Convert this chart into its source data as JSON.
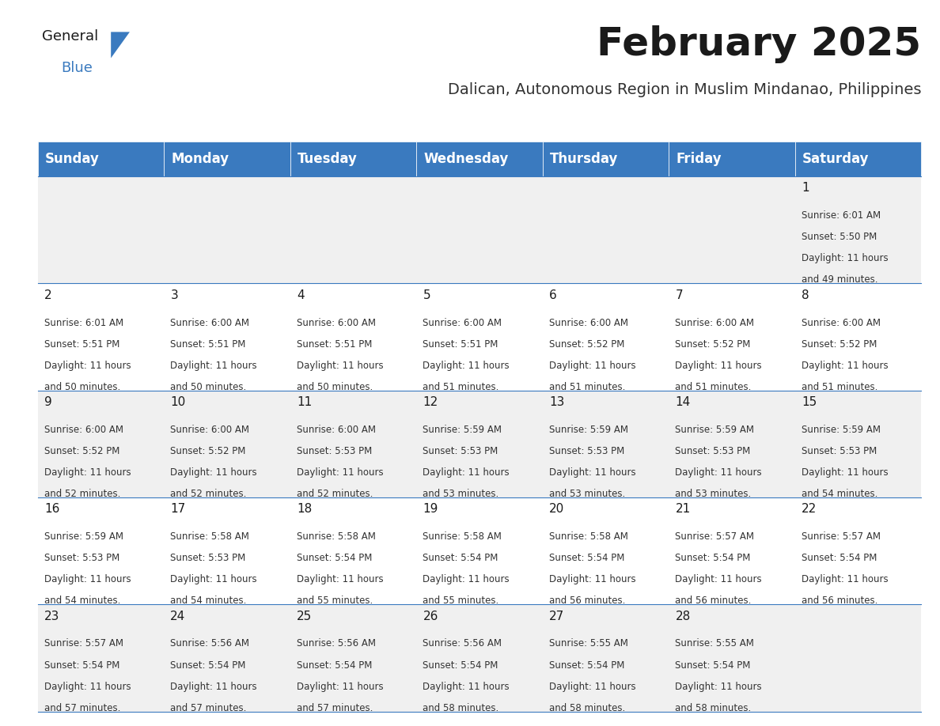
{
  "title": "February 2025",
  "subtitle": "Dalican, Autonomous Region in Muslim Mindanao, Philippines",
  "header_bg": "#3a7abf",
  "header_text_color": "#ffffff",
  "cell_bg_light": "#f0f0f0",
  "cell_bg_white": "#ffffff",
  "cell_text_color": "#333333",
  "day_number_color": "#1a1a1a",
  "border_color": "#3a7abf",
  "days_of_week": [
    "Sunday",
    "Monday",
    "Tuesday",
    "Wednesday",
    "Thursday",
    "Friday",
    "Saturday"
  ],
  "calendar": [
    [
      {
        "day": null,
        "sunrise": null,
        "sunset": null,
        "daylight_hours": null,
        "daylight_minutes": null
      },
      {
        "day": null,
        "sunrise": null,
        "sunset": null,
        "daylight_hours": null,
        "daylight_minutes": null
      },
      {
        "day": null,
        "sunrise": null,
        "sunset": null,
        "daylight_hours": null,
        "daylight_minutes": null
      },
      {
        "day": null,
        "sunrise": null,
        "sunset": null,
        "daylight_hours": null,
        "daylight_minutes": null
      },
      {
        "day": null,
        "sunrise": null,
        "sunset": null,
        "daylight_hours": null,
        "daylight_minutes": null
      },
      {
        "day": null,
        "sunrise": null,
        "sunset": null,
        "daylight_hours": null,
        "daylight_minutes": null
      },
      {
        "day": 1,
        "sunrise": "6:01 AM",
        "sunset": "5:50 PM",
        "daylight_hours": 11,
        "daylight_minutes": 49
      }
    ],
    [
      {
        "day": 2,
        "sunrise": "6:01 AM",
        "sunset": "5:51 PM",
        "daylight_hours": 11,
        "daylight_minutes": 50
      },
      {
        "day": 3,
        "sunrise": "6:00 AM",
        "sunset": "5:51 PM",
        "daylight_hours": 11,
        "daylight_minutes": 50
      },
      {
        "day": 4,
        "sunrise": "6:00 AM",
        "sunset": "5:51 PM",
        "daylight_hours": 11,
        "daylight_minutes": 50
      },
      {
        "day": 5,
        "sunrise": "6:00 AM",
        "sunset": "5:51 PM",
        "daylight_hours": 11,
        "daylight_minutes": 51
      },
      {
        "day": 6,
        "sunrise": "6:00 AM",
        "sunset": "5:52 PM",
        "daylight_hours": 11,
        "daylight_minutes": 51
      },
      {
        "day": 7,
        "sunrise": "6:00 AM",
        "sunset": "5:52 PM",
        "daylight_hours": 11,
        "daylight_minutes": 51
      },
      {
        "day": 8,
        "sunrise": "6:00 AM",
        "sunset": "5:52 PM",
        "daylight_hours": 11,
        "daylight_minutes": 51
      }
    ],
    [
      {
        "day": 9,
        "sunrise": "6:00 AM",
        "sunset": "5:52 PM",
        "daylight_hours": 11,
        "daylight_minutes": 52
      },
      {
        "day": 10,
        "sunrise": "6:00 AM",
        "sunset": "5:52 PM",
        "daylight_hours": 11,
        "daylight_minutes": 52
      },
      {
        "day": 11,
        "sunrise": "6:00 AM",
        "sunset": "5:53 PM",
        "daylight_hours": 11,
        "daylight_minutes": 52
      },
      {
        "day": 12,
        "sunrise": "5:59 AM",
        "sunset": "5:53 PM",
        "daylight_hours": 11,
        "daylight_minutes": 53
      },
      {
        "day": 13,
        "sunrise": "5:59 AM",
        "sunset": "5:53 PM",
        "daylight_hours": 11,
        "daylight_minutes": 53
      },
      {
        "day": 14,
        "sunrise": "5:59 AM",
        "sunset": "5:53 PM",
        "daylight_hours": 11,
        "daylight_minutes": 53
      },
      {
        "day": 15,
        "sunrise": "5:59 AM",
        "sunset": "5:53 PM",
        "daylight_hours": 11,
        "daylight_minutes": 54
      }
    ],
    [
      {
        "day": 16,
        "sunrise": "5:59 AM",
        "sunset": "5:53 PM",
        "daylight_hours": 11,
        "daylight_minutes": 54
      },
      {
        "day": 17,
        "sunrise": "5:58 AM",
        "sunset": "5:53 PM",
        "daylight_hours": 11,
        "daylight_minutes": 54
      },
      {
        "day": 18,
        "sunrise": "5:58 AM",
        "sunset": "5:54 PM",
        "daylight_hours": 11,
        "daylight_minutes": 55
      },
      {
        "day": 19,
        "sunrise": "5:58 AM",
        "sunset": "5:54 PM",
        "daylight_hours": 11,
        "daylight_minutes": 55
      },
      {
        "day": 20,
        "sunrise": "5:58 AM",
        "sunset": "5:54 PM",
        "daylight_hours": 11,
        "daylight_minutes": 56
      },
      {
        "day": 21,
        "sunrise": "5:57 AM",
        "sunset": "5:54 PM",
        "daylight_hours": 11,
        "daylight_minutes": 56
      },
      {
        "day": 22,
        "sunrise": "5:57 AM",
        "sunset": "5:54 PM",
        "daylight_hours": 11,
        "daylight_minutes": 56
      }
    ],
    [
      {
        "day": 23,
        "sunrise": "5:57 AM",
        "sunset": "5:54 PM",
        "daylight_hours": 11,
        "daylight_minutes": 57
      },
      {
        "day": 24,
        "sunrise": "5:56 AM",
        "sunset": "5:54 PM",
        "daylight_hours": 11,
        "daylight_minutes": 57
      },
      {
        "day": 25,
        "sunrise": "5:56 AM",
        "sunset": "5:54 PM",
        "daylight_hours": 11,
        "daylight_minutes": 57
      },
      {
        "day": 26,
        "sunrise": "5:56 AM",
        "sunset": "5:54 PM",
        "daylight_hours": 11,
        "daylight_minutes": 58
      },
      {
        "day": 27,
        "sunrise": "5:55 AM",
        "sunset": "5:54 PM",
        "daylight_hours": 11,
        "daylight_minutes": 58
      },
      {
        "day": 28,
        "sunrise": "5:55 AM",
        "sunset": "5:54 PM",
        "daylight_hours": 11,
        "daylight_minutes": 58
      },
      {
        "day": null,
        "sunrise": null,
        "sunset": null,
        "daylight_hours": null,
        "daylight_minutes": null
      }
    ]
  ],
  "logo_text_general": "General",
  "logo_text_blue": "Blue",
  "title_fontsize": 36,
  "subtitle_fontsize": 14,
  "header_fontsize": 12,
  "day_num_fontsize": 11,
  "cell_text_fontsize": 8.5
}
